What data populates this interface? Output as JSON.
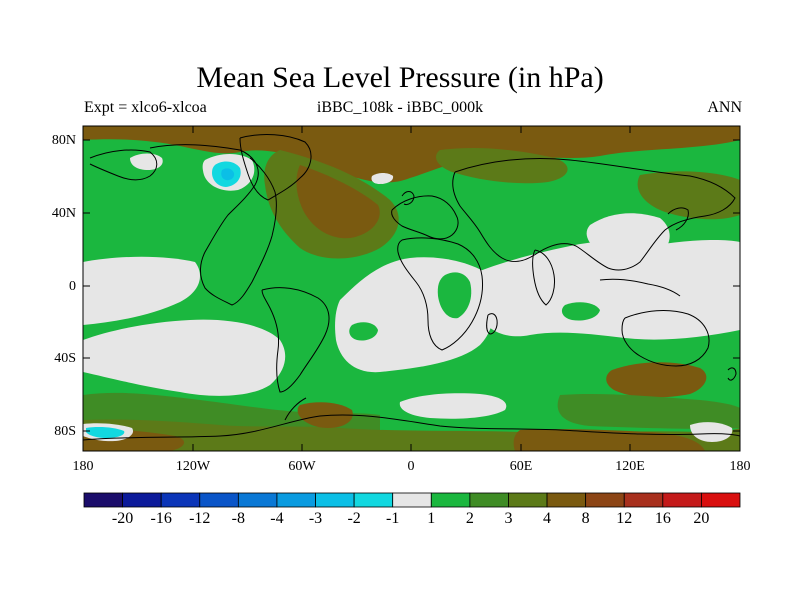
{
  "title": "Mean Sea Level Pressure (in hPa)",
  "subtitle_left": "Expt = xlco6-xlcoa",
  "subtitle_center": "iBBC_108k - iBBC_000k",
  "subtitle_right": "ANN",
  "lat_ticks": [
    "80N",
    "40N",
    "0",
    "40S",
    "80S"
  ],
  "lon_ticks": [
    "180",
    "120W",
    "60W",
    "0",
    "60E",
    "120E",
    "180"
  ],
  "colorbar": {
    "labels": [
      "-20",
      "-16",
      "-12",
      "-8",
      "-4",
      "-3",
      "-2",
      "-1",
      "1",
      "2",
      "3",
      "4",
      "8",
      "12",
      "16",
      "20"
    ],
    "colors": [
      "#1b0d6b",
      "#0c1a9a",
      "#0b35b8",
      "#0a55c8",
      "#0a78d5",
      "#0a9be0",
      "#0bbfe6",
      "#12d8e0",
      "#e6e6e6",
      "#1bb73f",
      "#3f8c25",
      "#5c7a18",
      "#7a5a10",
      "#8c4515",
      "#a8301d",
      "#c41a1a",
      "#d90f0f"
    ]
  },
  "map_colors": {
    "ocean_base": "#1bb73f",
    "neutral": "#e6e6e6",
    "dark_green": "#3f8c25",
    "olive": "#5c7a18",
    "brown": "#7a5a10",
    "cyan": "#12d8e0",
    "light_blue": "#0bbfe6",
    "coast": "#000000"
  }
}
